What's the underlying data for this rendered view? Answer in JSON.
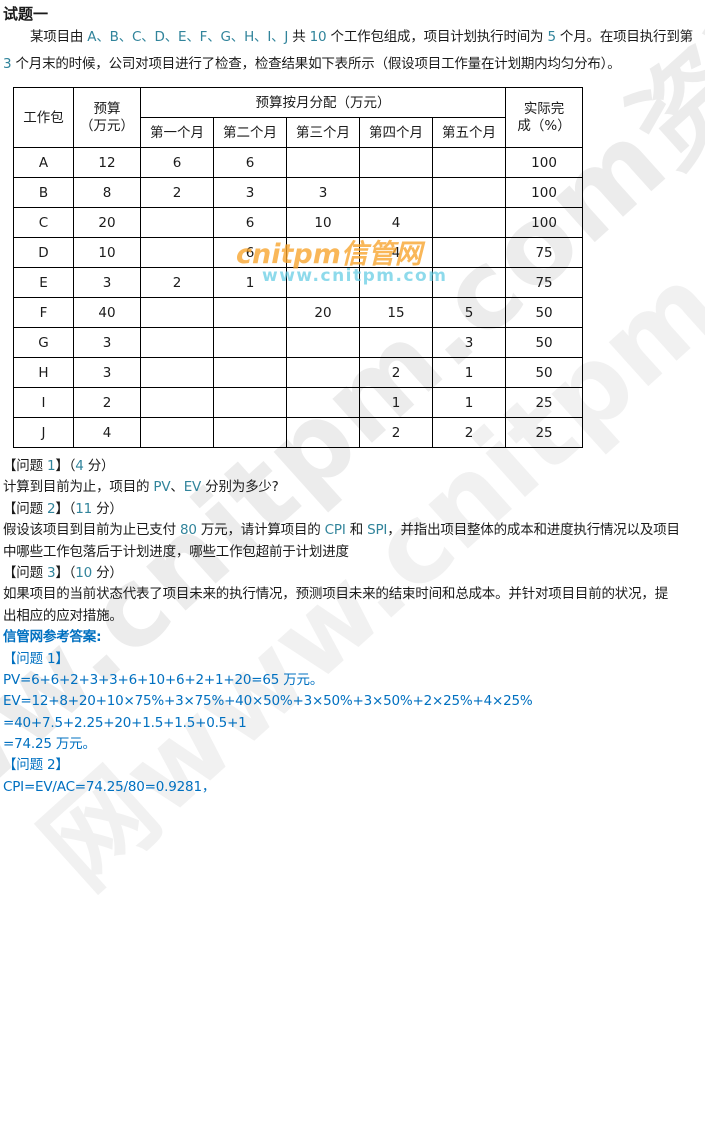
{
  "colors": {
    "accent_teal": "#31849b",
    "answer_blue": "#0070c0",
    "watermark_orange": "#f7a32a",
    "watermark_cyan": "#5ecbe3"
  },
  "title": "试题一",
  "intro": [
    {
      "segs": [
        {
          "t": "某项目由 "
        },
        {
          "t": "A、B、C、D、E、F、G、H、I、J",
          "c": "a"
        },
        {
          "t": " 共 "
        },
        {
          "t": "10",
          "c": "a"
        },
        {
          "t": " 个工作包组成，项目计划执行时间为 "
        },
        {
          "t": "5",
          "c": "a"
        },
        {
          "t": " 个月。在项目执行到第"
        }
      ]
    },
    {
      "segs": [
        {
          "t": "3",
          "c": "a"
        },
        {
          "t": " 个月末的时候，公司对项目进行了检查，检查结果如下表所示（假设项目工作量在计划期内均匀分布）。"
        }
      ]
    }
  ],
  "table": {
    "col_workpackage": "工作包",
    "budget_header": [
      "预算",
      "（万元）"
    ],
    "span_header": "预算按月分配（万元）",
    "months": [
      "第一个月",
      "第二个月",
      "第三个月",
      "第四个月",
      "第五个月"
    ],
    "actual_header": [
      "实际完",
      "成（%）"
    ],
    "rows": [
      {
        "wp": "A",
        "budget": "12",
        "m": [
          "6",
          "6",
          "",
          "",
          ""
        ],
        "actual": "100"
      },
      {
        "wp": "B",
        "budget": "8",
        "m": [
          "2",
          "3",
          "3",
          "",
          ""
        ],
        "actual": "100"
      },
      {
        "wp": "C",
        "budget": "20",
        "m": [
          "",
          "6",
          "10",
          "4",
          ""
        ],
        "actual": "100"
      },
      {
        "wp": "D",
        "budget": "10",
        "m": [
          "",
          "6",
          "",
          "4",
          ""
        ],
        "actual": "75"
      },
      {
        "wp": "E",
        "budget": "3",
        "m": [
          "2",
          "1",
          "",
          "",
          ""
        ],
        "actual": "75"
      },
      {
        "wp": "F",
        "budget": "40",
        "m": [
          "",
          "",
          "20",
          "15",
          "5"
        ],
        "actual": "50"
      },
      {
        "wp": "G",
        "budget": "3",
        "m": [
          "",
          "",
          "",
          "",
          "3"
        ],
        "actual": "50"
      },
      {
        "wp": "H",
        "budget": "3",
        "m": [
          "",
          "",
          "",
          "2",
          "1"
        ],
        "actual": "50"
      },
      {
        "wp": "I",
        "budget": "2",
        "m": [
          "",
          "",
          "",
          "1",
          "1"
        ],
        "actual": "25"
      },
      {
        "wp": "J",
        "budget": "4",
        "m": [
          "",
          "",
          "",
          "2",
          "2"
        ],
        "actual": "25"
      }
    ]
  },
  "questions": [
    {
      "segs": [
        {
          "t": "【问题 "
        },
        {
          "t": "1",
          "c": "a"
        },
        {
          "t": "】（"
        },
        {
          "t": "4",
          "c": "a"
        },
        {
          "t": " 分）"
        }
      ]
    },
    {
      "segs": [
        {
          "t": "计算到目前为止，项目的 "
        },
        {
          "t": "PV",
          "c": "a"
        },
        {
          "t": "、"
        },
        {
          "t": "EV",
          "c": "a"
        },
        {
          "t": " 分别为多少?"
        }
      ]
    },
    {
      "segs": [
        {
          "t": "【问题 "
        },
        {
          "t": "2",
          "c": "a"
        },
        {
          "t": "】（"
        },
        {
          "t": "11",
          "c": "a"
        },
        {
          "t": " 分）"
        }
      ]
    },
    {
      "segs": [
        {
          "t": "假设该项目到目前为止已支付 "
        },
        {
          "t": "80",
          "c": "a"
        },
        {
          "t": " 万元，请计算项目的 "
        },
        {
          "t": "CPI",
          "c": "a"
        },
        {
          "t": " 和 "
        },
        {
          "t": "SPI",
          "c": "a"
        },
        {
          "t": "，并指出项目整体的成本和进度执行情况以及项目"
        }
      ]
    },
    {
      "segs": [
        {
          "t": "中哪些工作包落后于计划进度，哪些工作包超前于计划进度"
        }
      ]
    },
    {
      "segs": [
        {
          "t": "【问题 "
        },
        {
          "t": "3",
          "c": "a"
        },
        {
          "t": "】（"
        },
        {
          "t": "10",
          "c": "a"
        },
        {
          "t": " 分）"
        }
      ]
    },
    {
      "segs": [
        {
          "t": "如果项目的当前状态代表了项目未来的执行情况，预测项目未来的结束时间和总成本。并针对项目目前的状况，提"
        }
      ]
    },
    {
      "segs": [
        {
          "t": "出相应的应对措施。"
        }
      ]
    }
  ],
  "answers": {
    "header": "信管网参考答案:",
    "lines": [
      "【问题 1】",
      "PV=6+6+2+3+3+6+10+6+2+1+20=65 万元。",
      "EV=12+8+20+10×75%+3×75%+40×50%+3×50%+3×50%+2×25%+4×25%",
      "=40+7.5+2.25+20+1.5+1.5+0.5+1",
      "=74.25 万元。",
      "【问题 2】",
      "CPI=EV/AC=74.25/80=0.9281，"
    ]
  },
  "watermark": {
    "diagonal1": "信管网www.cnitpm.com资料",
    "diagonal2": "网www.cnitpm.com",
    "center_line1": "cnitpm信管网",
    "center_line2": "www.cnitpm.com"
  }
}
